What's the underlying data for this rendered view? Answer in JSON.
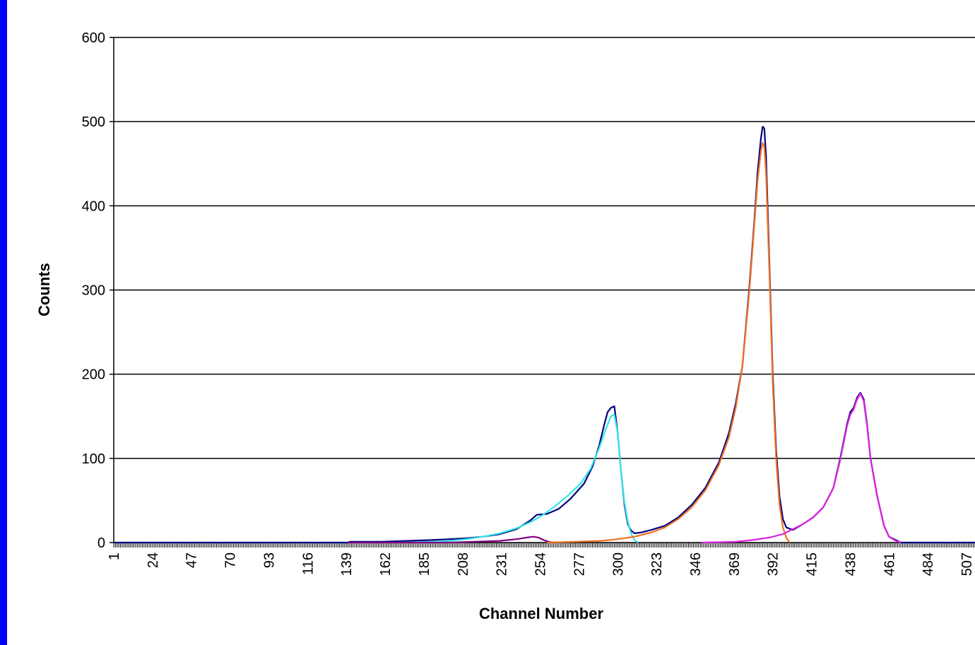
{
  "chart_data": {
    "type": "line",
    "title": "",
    "xlabel": "Channel Number",
    "ylabel": "Counts",
    "ylim": [
      0,
      600
    ],
    "xlim": [
      1,
      512
    ],
    "yticks": [
      0,
      100,
      200,
      300,
      400,
      500,
      600
    ],
    "xtick_labels": [
      "1",
      "24",
      "47",
      "70",
      "93",
      "116",
      "139",
      "162",
      "185",
      "208",
      "231",
      "254",
      "277",
      "300",
      "323",
      "346",
      "369",
      "392",
      "415",
      "438",
      "461",
      "484",
      "507"
    ],
    "grid": "horizontal",
    "legend": "none",
    "series": [
      {
        "color": "#000080",
        "points": [
          [
            1,
            0
          ],
          [
            140,
            0
          ],
          [
            141,
            1
          ],
          [
            160,
            1
          ],
          [
            175,
            2
          ],
          [
            190,
            3
          ],
          [
            200,
            4
          ],
          [
            210,
            5
          ],
          [
            220,
            7
          ],
          [
            230,
            10
          ],
          [
            240,
            16
          ],
          [
            248,
            26
          ],
          [
            252,
            33
          ],
          [
            258,
            34
          ],
          [
            265,
            40
          ],
          [
            272,
            52
          ],
          [
            280,
            70
          ],
          [
            285,
            90
          ],
          [
            289,
            115
          ],
          [
            292,
            140
          ],
          [
            294,
            155
          ],
          [
            296,
            160
          ],
          [
            298,
            162
          ],
          [
            300,
            130
          ],
          [
            302,
            85
          ],
          [
            304,
            45
          ],
          [
            306,
            22
          ],
          [
            308,
            14
          ],
          [
            310,
            11
          ],
          [
            314,
            12
          ],
          [
            320,
            15
          ],
          [
            328,
            20
          ],
          [
            336,
            30
          ],
          [
            344,
            45
          ],
          [
            352,
            65
          ],
          [
            360,
            95
          ],
          [
            366,
            130
          ],
          [
            370,
            165
          ],
          [
            374,
            210
          ],
          [
            378,
            300
          ],
          [
            381,
            380
          ],
          [
            383,
            440
          ],
          [
            385,
            480
          ],
          [
            386,
            494
          ],
          [
            387,
            492
          ],
          [
            388,
            460
          ],
          [
            390,
            330
          ],
          [
            392,
            200
          ],
          [
            394,
            110
          ],
          [
            396,
            55
          ],
          [
            398,
            28
          ],
          [
            400,
            18
          ],
          [
            404,
            15
          ],
          [
            410,
            22
          ],
          [
            416,
            30
          ],
          [
            422,
            42
          ],
          [
            428,
            65
          ],
          [
            432,
            100
          ],
          [
            436,
            140
          ],
          [
            438,
            155
          ],
          [
            440,
            160
          ],
          [
            442,
            172
          ],
          [
            444,
            178
          ],
          [
            446,
            170
          ],
          [
            448,
            140
          ],
          [
            450,
            100
          ],
          [
            454,
            55
          ],
          [
            458,
            20
          ],
          [
            461,
            7
          ],
          [
            465,
            3
          ],
          [
            468,
            0
          ],
          [
            512,
            0
          ]
        ]
      },
      {
        "color": "#33e6e6",
        "points": [
          [
            170,
            0
          ],
          [
            190,
            1
          ],
          [
            200,
            2
          ],
          [
            210,
            4
          ],
          [
            220,
            7
          ],
          [
            230,
            11
          ],
          [
            240,
            17
          ],
          [
            248,
            24
          ],
          [
            255,
            32
          ],
          [
            262,
            42
          ],
          [
            270,
            55
          ],
          [
            278,
            70
          ],
          [
            284,
            88
          ],
          [
            289,
            112
          ],
          [
            293,
            135
          ],
          [
            296,
            150
          ],
          [
            298,
            152
          ],
          [
            300,
            130
          ],
          [
            302,
            85
          ],
          [
            304,
            48
          ],
          [
            306,
            25
          ],
          [
            308,
            10
          ],
          [
            310,
            3
          ],
          [
            312,
            0
          ]
        ]
      },
      {
        "color": "#800080",
        "points": [
          [
            140,
            0
          ],
          [
            200,
            0
          ],
          [
            215,
            1
          ],
          [
            230,
            2
          ],
          [
            240,
            4
          ],
          [
            246,
            6
          ],
          [
            250,
            7
          ],
          [
            253,
            6
          ],
          [
            256,
            3
          ],
          [
            259,
            1
          ],
          [
            262,
            0
          ]
        ]
      },
      {
        "color": "#f07020",
        "points": [
          [
            258,
            0
          ],
          [
            275,
            1
          ],
          [
            290,
            2
          ],
          [
            300,
            4
          ],
          [
            310,
            7
          ],
          [
            320,
            12
          ],
          [
            328,
            18
          ],
          [
            336,
            28
          ],
          [
            344,
            42
          ],
          [
            352,
            62
          ],
          [
            360,
            92
          ],
          [
            366,
            125
          ],
          [
            370,
            160
          ],
          [
            374,
            210
          ],
          [
            378,
            295
          ],
          [
            381,
            375
          ],
          [
            383,
            430
          ],
          [
            385,
            465
          ],
          [
            386,
            475
          ],
          [
            387,
            470
          ],
          [
            388,
            440
          ],
          [
            390,
            320
          ],
          [
            392,
            190
          ],
          [
            394,
            100
          ],
          [
            396,
            45
          ],
          [
            398,
            18
          ],
          [
            400,
            6
          ],
          [
            402,
            0
          ]
        ]
      },
      {
        "color": "#dd22dd",
        "points": [
          [
            350,
            0
          ],
          [
            370,
            1
          ],
          [
            380,
            3
          ],
          [
            390,
            6
          ],
          [
            398,
            10
          ],
          [
            404,
            16
          ],
          [
            410,
            22
          ],
          [
            416,
            30
          ],
          [
            422,
            42
          ],
          [
            428,
            65
          ],
          [
            432,
            98
          ],
          [
            436,
            138
          ],
          [
            438,
            152
          ],
          [
            440,
            158
          ],
          [
            442,
            170
          ],
          [
            444,
            177
          ],
          [
            446,
            168
          ],
          [
            448,
            138
          ],
          [
            450,
            100
          ],
          [
            454,
            55
          ],
          [
            458,
            20
          ],
          [
            461,
            7
          ],
          [
            465,
            2
          ],
          [
            468,
            0
          ]
        ]
      }
    ]
  }
}
